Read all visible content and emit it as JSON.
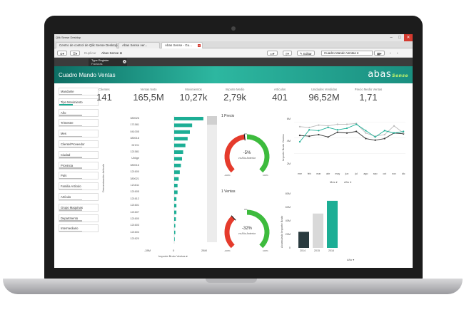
{
  "window": {
    "title": "Qlik Sense Desktop"
  },
  "tabs": [
    {
      "label": "Centro de control de Qlik Sense Desktop"
    },
    {
      "label": "Abas Sense ver..."
    },
    {
      "label": "Abas Sense - Gu..."
    }
  ],
  "toolbar": {
    "duplicate": "Duplicar",
    "app": "Abas Sense",
    "edit": "Editar",
    "sheet": "Cuadro Mando Ventas"
  },
  "navbar": {
    "tab_title": "Type Register",
    "tab_subtitle": "Facturas"
  },
  "header": {
    "title": "Cuadro Mando Ventas",
    "logo_main": "abas",
    "logo_sub": "Sense"
  },
  "filters": [
    "Mandante",
    "Tipo Movimiento",
    "Año",
    "Trimestre",
    "Mes",
    "Cliente/Proveedor",
    "Ciudad",
    "Provincia",
    "País",
    "Familia Artículo",
    "Artículo",
    "Grupo Maquinas",
    "Departmento",
    "Intermediario"
  ],
  "kpis": [
    {
      "label": "Clientes",
      "value": "141"
    },
    {
      "label": "Ventas Neto",
      "value": "165,5M"
    },
    {
      "label": "Movimientos",
      "value": "10,27k"
    },
    {
      "label": "Importe Medio",
      "value": "2,79k"
    },
    {
      "label": "Artículos",
      "value": "401"
    },
    {
      "label": "Unidades Vendidas",
      "value": "96,52M"
    },
    {
      "label": "Precio Medio Ventas",
      "value": "1,71"
    }
  ],
  "bar_chart": {
    "ylabel": "Denominación Artículo",
    "xlabel": "Importe Bruto Ventas",
    "xmin_label": "-28M",
    "xzero_label": "0",
    "xmax_label": "28M"
  },
  "gauges": [
    {
      "title": "1 Precio",
      "value": "-5%",
      "sub": "vs Año Anterior",
      "min": "-100%",
      "max": "100%",
      "mark": "0%"
    },
    {
      "title": "1 Ventas",
      "value": "-32%",
      "sub": "vs Año Anterior",
      "min": "-100%",
      "max": "100%",
      "mark": "0%"
    }
  ],
  "line_chart": {
    "ylabel": "Importe Bruto Ventas",
    "yticks": [
      "6M",
      "4M",
      "2M"
    ],
    "xlabel": "Mes",
    "legend": "Año"
  },
  "col_chart": {
    "ylabel": "Acumulado Importe Bruto",
    "yticks": [
      "80M",
      "60M",
      "40M",
      "20M",
      "0"
    ],
    "xlabel": "Año"
  },
  "chart_data": [
    {
      "type": "bar",
      "categories": [
        "380026",
        "171581",
        "041005",
        "380018",
        "DHO1",
        "121581",
        "Uhlige",
        "380016",
        "121600",
        "380021",
        "121611",
        "121605",
        "121612",
        "121601",
        "121607",
        "121600",
        "121603",
        "121604",
        "121620"
      ],
      "values": [
        26,
        16,
        14,
        12,
        10,
        8,
        7,
        6,
        5,
        4,
        3,
        3,
        2,
        2,
        2,
        1.5,
        1,
        1,
        0.5
      ],
      "xlabel": "Importe Bruto Ventas",
      "ylabel": "Denominación Artículo",
      "xlim": [
        -28,
        28
      ]
    },
    {
      "type": "line",
      "categories": [
        "ene",
        "feb",
        "mar",
        "abr",
        "may",
        "jun",
        "jul",
        "ago",
        "sep",
        "oct",
        "nov",
        "dic"
      ],
      "series": [
        {
          "values": [
            4.3,
            4.2,
            4.4,
            4.1,
            4.7,
            4.6,
            4.8,
            3.9,
            3.7,
            3.9,
            4.6,
            4.5
          ],
          "color": "#333333"
        },
        {
          "values": [
            5.4,
            5.3,
            5.6,
            5.5,
            5.7,
            5.7,
            5.8,
            4.6,
            4.2,
            4.4,
            5.5,
            4.6
          ],
          "color": "#bbbbbb"
        },
        {
          "values": [
            3.5,
            5.0,
            4.9,
            5.3,
            5.0,
            5.2,
            5.7,
            4.9,
            4.1,
            4.9,
            4.6,
            4.8
          ],
          "color": "#1cae95"
        }
      ],
      "ylim": [
        0,
        7
      ],
      "xlabel": "Mes",
      "ylabel": "Importe Bruto Ventas"
    },
    {
      "type": "bar",
      "categories": [
        "2014",
        "2015",
        "2016"
      ],
      "values": [
        29,
        62,
        85
      ],
      "colors": [
        "#2a3b3f",
        "#d9d9d9",
        "#1cae95"
      ],
      "ylim": [
        0,
        90
      ],
      "xlabel": "Año",
      "ylabel": "Acumulado Importe Bruto"
    }
  ]
}
